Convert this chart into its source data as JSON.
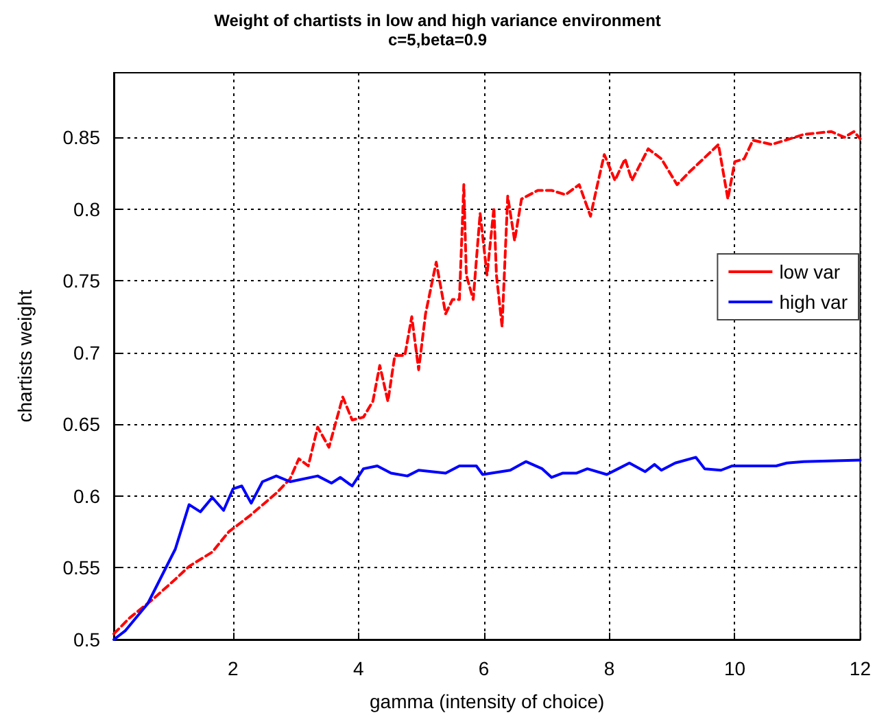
{
  "chart_data": {
    "type": "line",
    "title": "Weight of chartists in low and high variance environment",
    "subtitle": "c=5,beta=0.9",
    "xlabel": "gamma (intensity of choice)",
    "ylabel": "chartists weight",
    "xlim": [
      0.1,
      12
    ],
    "xticks": [
      2,
      4,
      6,
      8,
      10,
      12
    ],
    "ylim": [
      0.5,
      0.895
    ],
    "yticks": [
      0.5,
      0.55,
      0.6,
      0.65,
      0.7,
      0.75,
      0.8,
      0.85
    ],
    "grid": true,
    "legend": "right",
    "marker": "none",
    "series": [
      {
        "name": "low var",
        "color": "#ff0000",
        "line_style": "dashed",
        "x": [
          0.1,
          0.35,
          0.72,
          1.08,
          1.3,
          1.67,
          1.93,
          2.26,
          2.69,
          2.91,
          3.05,
          3.2,
          3.35,
          3.53,
          3.75,
          3.9,
          4.08,
          4.23,
          4.34,
          4.47,
          4.58,
          4.74,
          4.85,
          4.96,
          5.07,
          5.24,
          5.39,
          5.5,
          5.61,
          5.68,
          5.72,
          5.83,
          5.94,
          6.05,
          6.16,
          6.2,
          6.29,
          6.38,
          6.49,
          6.6,
          6.86,
          7.08,
          7.3,
          7.52,
          7.7,
          7.81,
          7.92,
          8.09,
          8.25,
          8.36,
          8.62,
          8.83,
          9.08,
          9.28,
          9.5,
          9.74,
          9.89,
          10,
          10.15,
          10.29,
          10.59,
          10.81,
          11.1,
          11.54,
          11.75,
          11.9,
          12
        ],
        "values": [
          0.504,
          0.515,
          0.528,
          0.542,
          0.551,
          0.561,
          0.575,
          0.586,
          0.602,
          0.612,
          0.626,
          0.621,
          0.648,
          0.634,
          0.669,
          0.653,
          0.655,
          0.666,
          0.691,
          0.666,
          0.698,
          0.698,
          0.725,
          0.688,
          0.727,
          0.763,
          0.727,
          0.737,
          0.737,
          0.817,
          0.754,
          0.737,
          0.797,
          0.754,
          0.801,
          0.754,
          0.718,
          0.809,
          0.778,
          0.807,
          0.813,
          0.813,
          0.81,
          0.817,
          0.795,
          0.817,
          0.838,
          0.82,
          0.835,
          0.82,
          0.842,
          0.835,
          0.817,
          0.826,
          0.835,
          0.845,
          0.807,
          0.833,
          0.835,
          0.848,
          0.845,
          0.848,
          0.852,
          0.854,
          0.85,
          0.854,
          0.849
        ]
      },
      {
        "name": "high var",
        "color": "#0000ff",
        "line_style": "solid",
        "x": [
          0.1,
          0.28,
          0.64,
          0.86,
          1.08,
          1.3,
          1.48,
          1.67,
          1.85,
          2.0,
          2.14,
          2.29,
          2.47,
          2.69,
          2.91,
          3.35,
          3.57,
          3.71,
          3.9,
          4.08,
          4.3,
          4.52,
          4.78,
          4.96,
          5.39,
          5.61,
          5.88,
          5.98,
          6.42,
          6.67,
          6.93,
          7.08,
          7.26,
          7.48,
          7.65,
          7.96,
          8.14,
          8.32,
          8.57,
          8.72,
          8.83,
          9.05,
          9.38,
          9.52,
          9.78,
          9.96,
          10.66,
          10.83,
          11.1,
          12
        ],
        "values": [
          0.5,
          0.506,
          0.525,
          0.544,
          0.563,
          0.594,
          0.589,
          0.599,
          0.59,
          0.605,
          0.607,
          0.595,
          0.61,
          0.614,
          0.61,
          0.614,
          0.609,
          0.613,
          0.607,
          0.619,
          0.621,
          0.616,
          0.614,
          0.618,
          0.616,
          0.621,
          0.621,
          0.615,
          0.618,
          0.624,
          0.619,
          0.613,
          0.616,
          0.616,
          0.619,
          0.615,
          0.619,
          0.623,
          0.617,
          0.622,
          0.618,
          0.623,
          0.627,
          0.619,
          0.618,
          0.621,
          0.621,
          0.623,
          0.624,
          0.625
        ]
      }
    ]
  }
}
